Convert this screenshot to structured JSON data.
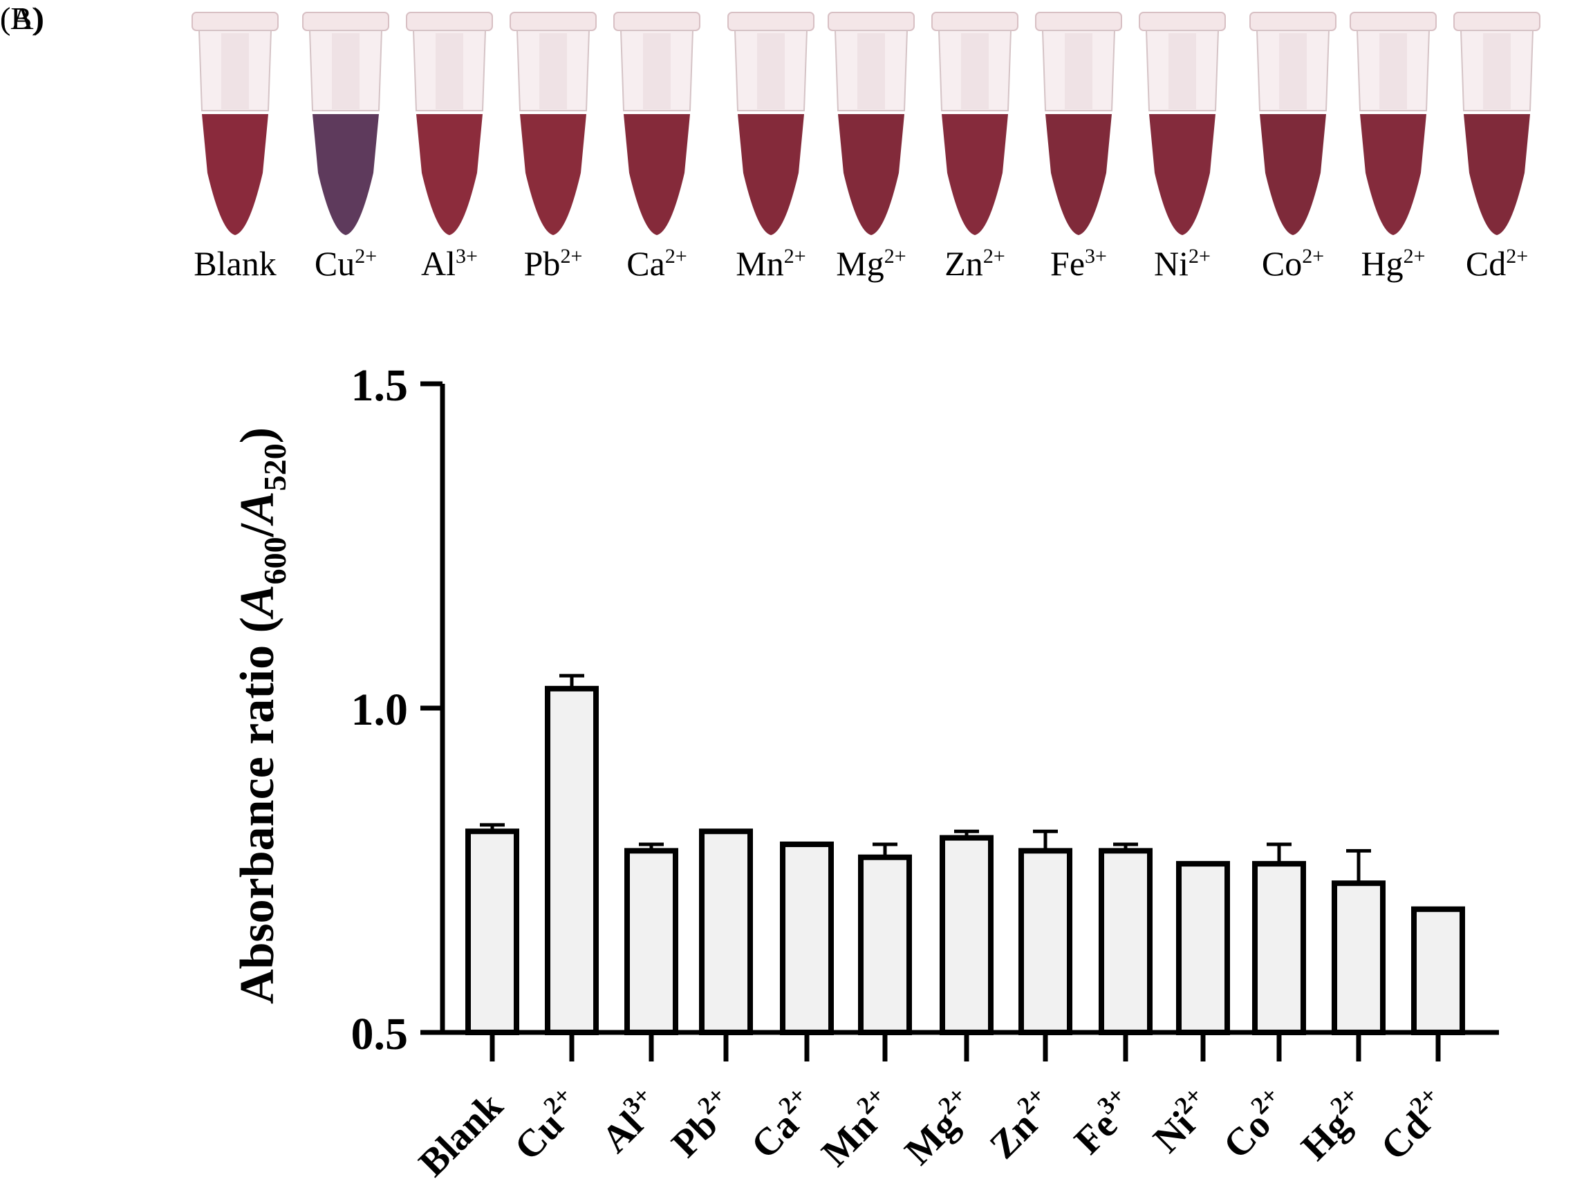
{
  "panels": {
    "a_label": "(A)",
    "b_label": "(B)"
  },
  "tube_colors": {
    "blank": "#8a2a3c",
    "cu": "#5e3a5c",
    "al": "#8c2c3c",
    "pb": "#8a2c3b",
    "ca": "#852a3a",
    "mn": "#842a3a",
    "mg": "#822a3a",
    "zn": "#862b3c",
    "fe": "#802a3a",
    "ni": "#842b3c",
    "co": "#7e2a3a",
    "hg": "#842b3c",
    "cd": "#802a3a"
  },
  "tubes": [
    {
      "base": "Blank",
      "sup": ""
    },
    {
      "base": "Cu",
      "sup": "2+"
    },
    {
      "base": "Al",
      "sup": "3+"
    },
    {
      "base": "Pb",
      "sup": "2+"
    },
    {
      "base": "Ca",
      "sup": "2+"
    },
    {
      "base": "Mn",
      "sup": "2+"
    },
    {
      "base": "Mg",
      "sup": "2+"
    },
    {
      "base": "Zn",
      "sup": "2+"
    },
    {
      "base": "Fe",
      "sup": "3+"
    },
    {
      "base": "Ni",
      "sup": "2+"
    },
    {
      "base": "Co",
      "sup": "2+"
    },
    {
      "base": "Hg",
      "sup": "2+"
    },
    {
      "base": "Cd",
      "sup": "2+"
    }
  ],
  "chart_data": {
    "type": "bar",
    "categories": [
      "Blank",
      "Cu2+",
      "Al3+",
      "Pb2+",
      "Ca2+",
      "Mn2+",
      "Mg2+",
      "Zn2+",
      "Fe3+",
      "Ni2+",
      "Co2+",
      "Hg2+",
      "Cd2+"
    ],
    "category_parts": [
      {
        "base": "Blank",
        "sup": ""
      },
      {
        "base": "Cu",
        "sup": "2+"
      },
      {
        "base": "Al",
        "sup": "3+"
      },
      {
        "base": "Pb",
        "sup": "2+"
      },
      {
        "base": "Ca",
        "sup": "2+"
      },
      {
        "base": "Mn",
        "sup": "2+"
      },
      {
        "base": "Mg",
        "sup": "2+"
      },
      {
        "base": "Zn",
        "sup": "2+"
      },
      {
        "base": "Fe",
        "sup": "3+"
      },
      {
        "base": "Ni",
        "sup": "2+"
      },
      {
        "base": "Co",
        "sup": "2+"
      },
      {
        "base": "Hg",
        "sup": "2+"
      },
      {
        "base": "Cd",
        "sup": "2+"
      }
    ],
    "values": [
      0.81,
      1.03,
      0.78,
      0.81,
      0.79,
      0.77,
      0.8,
      0.78,
      0.78,
      0.76,
      0.76,
      0.73,
      0.69
    ],
    "errors": [
      0.01,
      0.02,
      0.01,
      0.0,
      0.0,
      0.02,
      0.01,
      0.03,
      0.01,
      0.0,
      0.03,
      0.05,
      0.0
    ],
    "ylim": [
      0.5,
      1.5
    ],
    "yticks": [
      "0.5",
      "1.0",
      "1.5"
    ],
    "ytick_values": [
      0.5,
      1.0,
      1.5
    ],
    "ylabel": {
      "main": "Absorbance ratio (",
      "a1": "A",
      "s1": "600",
      "slash": "/",
      "a2": "A",
      "s2": "520",
      "close": ")"
    },
    "xlabel": "",
    "title": "",
    "bar_fill": "#f1f1f1",
    "bar_stroke": "#000000"
  }
}
